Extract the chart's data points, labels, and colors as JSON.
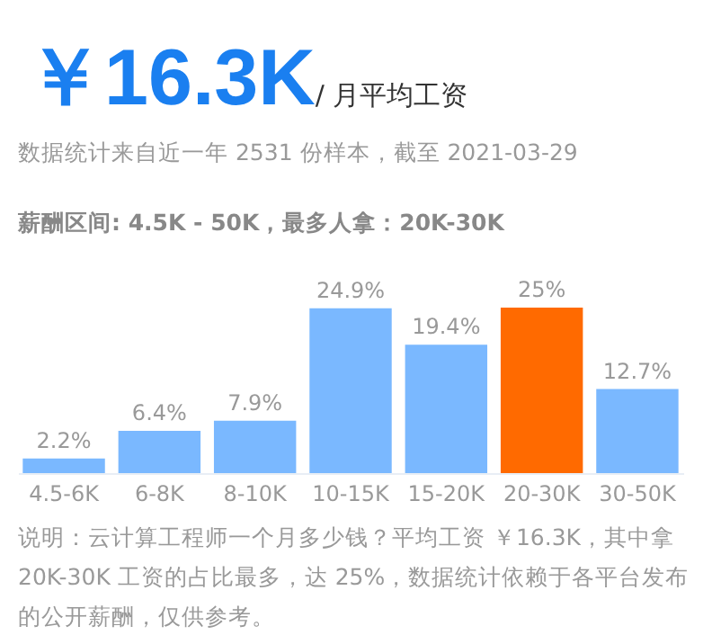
{
  "chart_data": {
    "type": "bar",
    "title": "￥16.3K",
    "subtitle": "/ 月平均工资",
    "annotations": [
      "数据统计来自近一年 2531 份样本，截至 2021-03-29",
      "薪酬区间: 4.5K - 50K，最多人拿：20K-30K",
      "说明：云计算工程师一个月多少钱？平均工资 ￥16.3K，其中拿 20K-30K 工资的占比最多，达 25%，数据统计依赖于各平台发布的公开薪酬，仅供参考。"
    ],
    "categories": [
      "4.5-6K",
      "6-8K",
      "8-10K",
      "10-15K",
      "15-20K",
      "20-30K",
      "30-50K"
    ],
    "values": [
      2.2,
      6.4,
      7.9,
      24.9,
      19.4,
      25,
      12.7
    ],
    "colors": [
      "#7ab8ff",
      "#7ab8ff",
      "#7ab8ff",
      "#7ab8ff",
      "#7ab8ff",
      "#ff6a00",
      "#7ab8ff"
    ],
    "value_labels": [
      "2.2%",
      "6.4%",
      "7.9%",
      "24.9%",
      "19.4%",
      "25%",
      "12.7%"
    ]
  }
}
